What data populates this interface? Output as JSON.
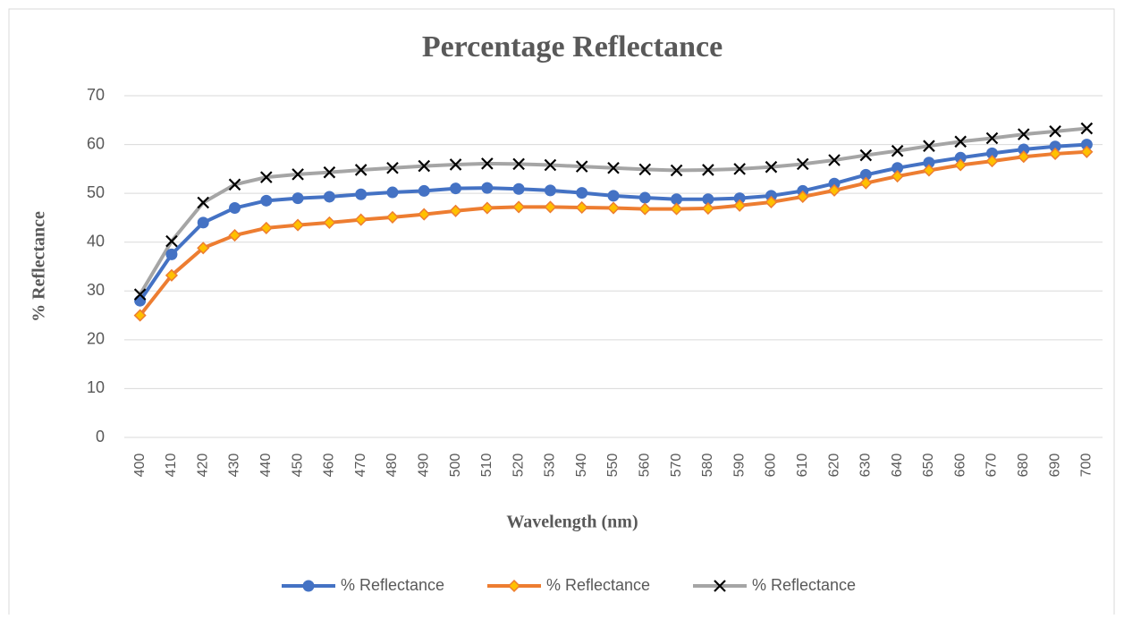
{
  "chart_data": {
    "type": "line",
    "title": "Percentage Reflectance",
    "x_label": "Wavelength (nm)",
    "y_label": "% Reflectance",
    "x": [
      400,
      410,
      420,
      430,
      440,
      450,
      460,
      470,
      480,
      490,
      500,
      510,
      520,
      530,
      540,
      550,
      560,
      570,
      580,
      590,
      600,
      610,
      620,
      630,
      640,
      650,
      660,
      670,
      680,
      690,
      700
    ],
    "xlim": [
      395,
      705
    ],
    "xticks": [
      400,
      410,
      420,
      430,
      440,
      450,
      460,
      470,
      480,
      490,
      500,
      510,
      520,
      530,
      540,
      550,
      560,
      570,
      580,
      590,
      600,
      610,
      620,
      630,
      640,
      650,
      660,
      670,
      680,
      690,
      700
    ],
    "ylim": [
      0,
      70
    ],
    "yticks": [
      0,
      10,
      20,
      30,
      40,
      50,
      60,
      70
    ],
    "grid": true,
    "legend": "bottom",
    "series": [
      {
        "name": "% Reflectance",
        "color": "#4472c4",
        "marker": "circle",
        "marker_fill": "#4472c4",
        "values": [
          28,
          37.5,
          44,
          47,
          48.5,
          49,
          49.3,
          49.8,
          50.2,
          50.5,
          51,
          51.1,
          50.9,
          50.6,
          50.1,
          49.5,
          49.1,
          48.8,
          48.8,
          49,
          49.5,
          50.5,
          52,
          53.8,
          55.2,
          56.3,
          57.3,
          58.2,
          59,
          59.6,
          60
        ]
      },
      {
        "name": "% Reflectance",
        "color": "#ed7d31",
        "marker": "diamond",
        "marker_fill": "#ffc000",
        "values": [
          25,
          33.2,
          38.8,
          41.4,
          42.9,
          43.5,
          44,
          44.6,
          45.1,
          45.7,
          46.4,
          47,
          47.2,
          47.2,
          47.1,
          47,
          46.8,
          46.8,
          46.9,
          47.5,
          48.2,
          49.3,
          50.6,
          52.1,
          53.5,
          54.7,
          55.8,
          56.6,
          57.5,
          58.1,
          58.5
        ]
      },
      {
        "name": "% Reflectance",
        "color": "#a5a5a5",
        "marker": "x",
        "marker_fill": "#000000",
        "values": [
          29.3,
          40.2,
          48.1,
          51.8,
          53.3,
          53.9,
          54.3,
          54.8,
          55.2,
          55.6,
          55.9,
          56.1,
          56,
          55.8,
          55.5,
          55.2,
          54.9,
          54.7,
          54.8,
          55,
          55.4,
          56,
          56.8,
          57.8,
          58.7,
          59.7,
          60.6,
          61.3,
          62.1,
          62.7,
          63.3
        ]
      }
    ]
  }
}
